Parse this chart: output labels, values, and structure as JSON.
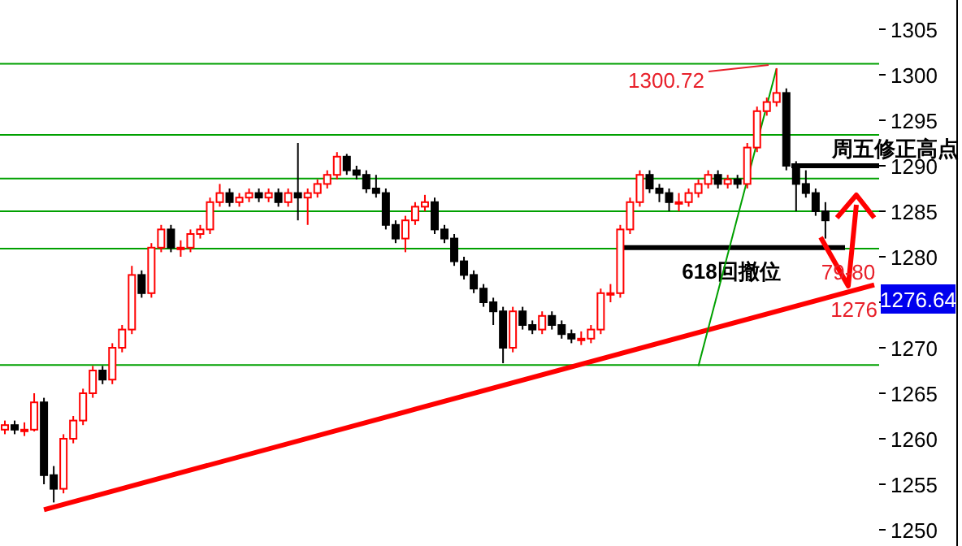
{
  "chart_data": {
    "type": "candlestick",
    "categories": [
      null,
      null,
      null,
      null,
      null,
      null,
      null,
      null,
      null,
      null,
      null,
      null,
      null,
      null,
      null,
      null,
      null,
      null,
      null,
      null,
      null,
      null,
      null,
      null,
      null,
      null,
      null,
      null,
      null,
      null,
      null,
      null,
      null,
      null,
      null,
      null,
      null,
      null,
      null,
      null,
      null,
      null,
      null,
      null,
      null,
      null,
      null,
      null,
      null,
      null,
      null,
      null,
      null,
      null,
      null,
      null,
      null,
      null,
      null,
      null,
      null,
      null,
      null,
      null,
      null,
      null,
      null,
      null,
      null,
      null,
      null,
      null,
      null,
      null,
      null,
      null,
      null,
      null,
      null,
      null,
      null,
      null,
      null,
      null,
      null,
      null,
      null,
      null,
      null,
      null
    ],
    "ohlc": [
      [
        1261,
        1262,
        1260.5,
        1261.5
      ],
      [
        1261.5,
        1262,
        1260.5,
        1261
      ],
      [
        1261,
        1261.8,
        1260.3,
        1261
      ],
      [
        1261,
        1265,
        1260.8,
        1264
      ],
      [
        1264,
        1264.5,
        1255,
        1256
      ],
      [
        1256,
        1257,
        1253,
        1254.5
      ],
      [
        1254.5,
        1260.5,
        1254,
        1260
      ],
      [
        1260,
        1262.5,
        1259.5,
        1262
      ],
      [
        1262,
        1265.5,
        1261.5,
        1265
      ],
      [
        1265,
        1268,
        1264.5,
        1267.5
      ],
      [
        1267.5,
        1268,
        1266,
        1266.5
      ],
      [
        1266.5,
        1270.5,
        1266,
        1270
      ],
      [
        1270,
        1272.5,
        1269.5,
        1272
      ],
      [
        1272,
        1279,
        1271.5,
        1278
      ],
      [
        1278,
        1278.5,
        1275.5,
        1276
      ],
      [
        1276,
        1281.5,
        1275.5,
        1281
      ],
      [
        1281,
        1283.5,
        1280.5,
        1283
      ],
      [
        1283,
        1283.5,
        1280.5,
        1281
      ],
      [
        1281,
        1281.8,
        1280,
        1281
      ],
      [
        1281,
        1283,
        1280.5,
        1282.5
      ],
      [
        1282.5,
        1283.5,
        1282,
        1283
      ],
      [
        1283,
        1286.5,
        1282.5,
        1286
      ],
      [
        1286,
        1288,
        1285.5,
        1287
      ],
      [
        1287,
        1287.5,
        1285.5,
        1286
      ],
      [
        1286,
        1287,
        1285.5,
        1286.5
      ],
      [
        1286.5,
        1287.5,
        1286,
        1287
      ],
      [
        1287,
        1287.5,
        1286,
        1286.5
      ],
      [
        1286.5,
        1287.5,
        1286,
        1287
      ],
      [
        1287,
        1287.5,
        1285.5,
        1286
      ],
      [
        1286,
        1287.5,
        1285.5,
        1287
      ],
      [
        1287,
        1292.5,
        1284,
        1286.5
      ],
      [
        1286.5,
        1287.5,
        1283.5,
        1287
      ],
      [
        1287,
        1288.5,
        1286.5,
        1288
      ],
      [
        1288,
        1289.5,
        1287.5,
        1289
      ],
      [
        1289,
        1291.5,
        1288.5,
        1291
      ],
      [
        1291,
        1291.3,
        1289,
        1289.5
      ],
      [
        1289.5,
        1290,
        1288.5,
        1289
      ],
      [
        1289,
        1289.5,
        1287,
        1287.5
      ],
      [
        1287.5,
        1289,
        1286.5,
        1287
      ],
      [
        1287,
        1287.5,
        1283,
        1283.5
      ],
      [
        1283.5,
        1284,
        1281.5,
        1282
      ],
      [
        1282,
        1284.5,
        1280.5,
        1284
      ],
      [
        1284,
        1286,
        1283.5,
        1285.5
      ],
      [
        1285.5,
        1286.8,
        1285,
        1286
      ],
      [
        1286,
        1286.5,
        1282.5,
        1283
      ],
      [
        1283,
        1283.5,
        1281.5,
        1282
      ],
      [
        1282,
        1282.5,
        1279,
        1279.5
      ],
      [
        1279.5,
        1280,
        1277.5,
        1278
      ],
      [
        1278,
        1278.5,
        1276,
        1276.5
      ],
      [
        1276.5,
        1277,
        1274.5,
        1275
      ],
      [
        1275,
        1275.5,
        1272.5,
        1274
      ],
      [
        1274,
        1274.5,
        1268.3,
        1270
      ],
      [
        1270,
        1274.5,
        1269.5,
        1274
      ],
      [
        1274,
        1274.5,
        1272,
        1272.5
      ],
      [
        1272.5,
        1273,
        1271.5,
        1272
      ],
      [
        1272,
        1274,
        1271.5,
        1273.5
      ],
      [
        1273.5,
        1274,
        1272,
        1272.5
      ],
      [
        1272.5,
        1273,
        1271,
        1271.5
      ],
      [
        1271.5,
        1272,
        1270.5,
        1271
      ],
      [
        1271,
        1271.8,
        1270.3,
        1271
      ],
      [
        1271,
        1272.5,
        1270.5,
        1272
      ],
      [
        1272,
        1276.5,
        1271.5,
        1276
      ],
      [
        1276,
        1277,
        1275,
        1276
      ],
      [
        1276,
        1283.5,
        1275.5,
        1283
      ],
      [
        1283,
        1286.5,
        1282.5,
        1286
      ],
      [
        1286,
        1289.5,
        1285.5,
        1289
      ],
      [
        1289,
        1289.5,
        1287,
        1287.5
      ],
      [
        1287.5,
        1288,
        1286,
        1287
      ],
      [
        1287,
        1287.5,
        1285,
        1286
      ],
      [
        1286,
        1287,
        1285,
        1286
      ],
      [
        1286,
        1287.5,
        1285.5,
        1287
      ],
      [
        1287,
        1288.5,
        1286.5,
        1288
      ],
      [
        1288,
        1289.5,
        1287.5,
        1289
      ],
      [
        1289,
        1289.5,
        1287.5,
        1288
      ],
      [
        1288,
        1289,
        1287.5,
        1288.5
      ],
      [
        1288.5,
        1289,
        1287.5,
        1288
      ],
      [
        1288,
        1292.5,
        1287.5,
        1292
      ],
      [
        1292,
        1296.5,
        1291.5,
        1296
      ],
      [
        1296,
        1297.5,
        1295.5,
        1297
      ],
      [
        1297,
        1300.72,
        1296.5,
        1298
      ],
      [
        1298,
        1298.5,
        1289.5,
        1290
      ],
      [
        1290,
        1290.5,
        1285,
        1288
      ],
      [
        1288,
        1289.5,
        1286.5,
        1287
      ],
      [
        1287,
        1287.5,
        1284.5,
        1285
      ],
      [
        1285,
        1286,
        1282,
        1284
      ],
      null,
      null,
      null,
      null,
      null
    ],
    "series": [
      {
        "type": "line",
        "color": "#ff0000",
        "values": [
          null,
          null,
          null,
          null,
          1252.2,
          null,
          null,
          null,
          null,
          null,
          null,
          null,
          null,
          null,
          null,
          null,
          null,
          null,
          null,
          null,
          null,
          null,
          null,
          null,
          null,
          null,
          null,
          null,
          null,
          null,
          null,
          null,
          null,
          null,
          null,
          null,
          null,
          null,
          null,
          null,
          null,
          null,
          null,
          null,
          null,
          null,
          null,
          null,
          null,
          null,
          null,
          null,
          null,
          null,
          null,
          null,
          null,
          null,
          null,
          null,
          null,
          null,
          null,
          null,
          null,
          null,
          null,
          null,
          null,
          null,
          null,
          null,
          null,
          null,
          null,
          null,
          null,
          null,
          null,
          null,
          null,
          null,
          null,
          null,
          null,
          null,
          null,
          null,
          null,
          1276.9
        ]
      },
      {
        "type": "line",
        "color": "#00a000",
        "values": [
          null,
          null,
          null,
          null,
          null,
          null,
          null,
          null,
          null,
          null,
          null,
          null,
          null,
          null,
          null,
          null,
          null,
          null,
          null,
          null,
          null,
          null,
          null,
          null,
          null,
          null,
          null,
          null,
          null,
          null,
          null,
          null,
          null,
          null,
          null,
          null,
          null,
          null,
          null,
          null,
          null,
          null,
          null,
          null,
          null,
          null,
          null,
          null,
          null,
          null,
          null,
          null,
          null,
          null,
          null,
          null,
          null,
          null,
          null,
          null,
          null,
          null,
          null,
          null,
          null,
          null,
          null,
          null,
          null,
          null,
          null,
          1268,
          null,
          null,
          null,
          null,
          null,
          null,
          null,
          1300.7,
          null,
          null,
          null,
          null,
          null,
          null,
          null,
          null,
          null,
          null
        ]
      }
    ],
    "ylim": [
      1250,
      1305
    ],
    "yticks": [
      1250,
      1255,
      1260,
      1265,
      1270,
      {
        "value": 1275,
        "label": null
      },
      1280,
      1285,
      1290,
      1295,
      1300,
      1305
    ],
    "tick_labels": "y",
    "grid": false,
    "ref_lines": [
      {
        "axis": "y",
        "value": 1301.2,
        "color": "#00a000"
      },
      {
        "axis": "y",
        "value": 1293.4,
        "color": "#00a000"
      },
      {
        "axis": "y",
        "value": 1288.6,
        "color": "#00a000"
      },
      {
        "axis": "y",
        "value": 1285,
        "color": "#00a000"
      },
      {
        "axis": "y",
        "value": 1280.9,
        "color": "#00a000"
      },
      {
        "axis": "y",
        "value": 1268.1,
        "color": "#00a000"
      },
      {
        "axis": "y",
        "value": 1281,
        "label": "618回撤位",
        "color": "#000000"
      },
      {
        "axis": "y",
        "value": 1290,
        "label": "周五修正高点",
        "color": "#000000"
      }
    ],
    "annotations": [
      "1300.72",
      "79-80",
      "1276",
      "1276.64"
    ]
  }
}
